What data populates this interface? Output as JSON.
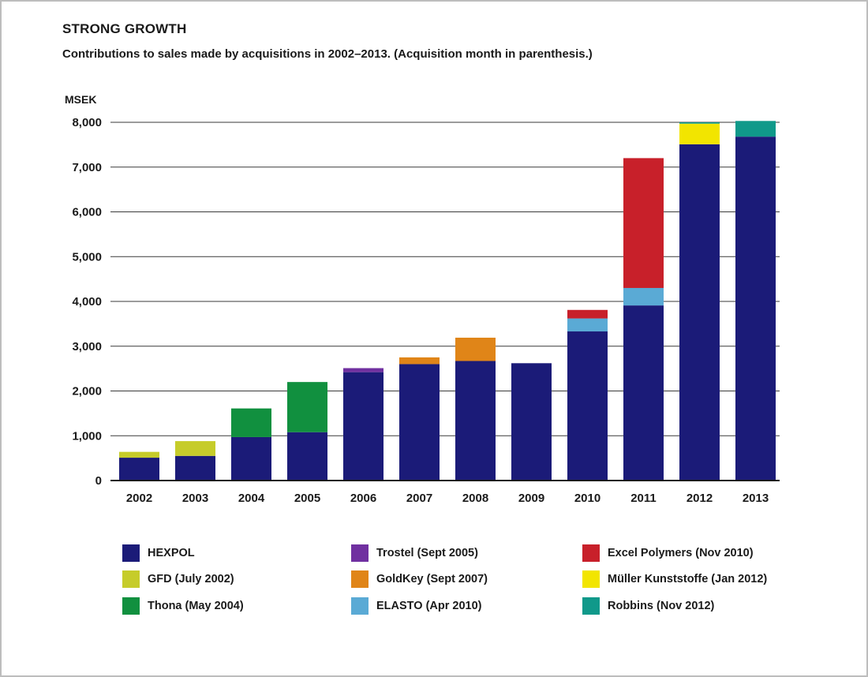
{
  "chart_data": {
    "type": "bar",
    "stacked": true,
    "title": "STRONG GROWTH",
    "subtitle": "Contributions to sales made by acquisitions in 2002–2013. (Acquisition month in parenthesis.)",
    "ylabel": "MSEK",
    "xlabel": "",
    "ylim": [
      0,
      8000
    ],
    "yticks": [
      0,
      1000,
      2000,
      3000,
      4000,
      5000,
      6000,
      7000,
      8000
    ],
    "ytick_labels": [
      "0",
      "1,000",
      "2,000",
      "3,000",
      "4,000",
      "5,000",
      "6,000",
      "7,000",
      "8,000"
    ],
    "grid": true,
    "legend_position": "bottom",
    "categories": [
      "2002",
      "2003",
      "2004",
      "2005",
      "2006",
      "2007",
      "2008",
      "2009",
      "2010",
      "2011",
      "2012",
      "2013"
    ],
    "series": [
      {
        "name": "HEXPOL",
        "color": "#1b1b78",
        "values": [
          510,
          550,
          970,
          1080,
          2420,
          2600,
          2670,
          2620,
          3330,
          3910,
          7510,
          7680
        ]
      },
      {
        "name": "GFD (July 2002)",
        "color": "#c6cc2a",
        "values": [
          130,
          330,
          0,
          0,
          0,
          0,
          0,
          0,
          0,
          0,
          0,
          0
        ]
      },
      {
        "name": "Thona (May 2004)",
        "color": "#11903f",
        "values": [
          0,
          0,
          640,
          1120,
          0,
          0,
          0,
          0,
          0,
          0,
          0,
          0
        ]
      },
      {
        "name": "Trostel (Sept 2005)",
        "color": "#7030a0",
        "values": [
          0,
          0,
          0,
          0,
          90,
          0,
          0,
          0,
          0,
          0,
          0,
          0
        ]
      },
      {
        "name": "GoldKey (Sept 2007)",
        "color": "#e08518",
        "values": [
          0,
          0,
          0,
          0,
          0,
          150,
          520,
          0,
          0,
          0,
          0,
          0
        ]
      },
      {
        "name": "ELASTO (Apr 2010)",
        "color": "#5aaad5",
        "values": [
          0,
          0,
          0,
          0,
          0,
          0,
          0,
          0,
          290,
          390,
          0,
          0
        ]
      },
      {
        "name": "Excel Polymers (Nov 2010)",
        "color": "#c8202a",
        "values": [
          0,
          0,
          0,
          0,
          0,
          0,
          0,
          0,
          190,
          2900,
          0,
          0
        ]
      },
      {
        "name": "Müller Kunststoffe (Jan 2012)",
        "color": "#f2e500",
        "values": [
          0,
          0,
          0,
          0,
          0,
          0,
          0,
          0,
          0,
          0,
          460,
          0
        ]
      },
      {
        "name": "Robbins (Nov 2012)",
        "color": "#10998a",
        "values": [
          0,
          0,
          0,
          0,
          0,
          0,
          0,
          0,
          0,
          0,
          30,
          350
        ]
      }
    ],
    "legend_columns": [
      [
        "HEXPOL",
        "GFD (July 2002)",
        "Thona (May 2004)"
      ],
      [
        "Trostel (Sept 2005)",
        "GoldKey (Sept 2007)",
        "ELASTO (Apr 2010)"
      ],
      [
        "Excel Polymers (Nov 2010)",
        "Müller Kunststoffe (Jan 2012)",
        "Robbins (Nov 2012)"
      ]
    ]
  }
}
